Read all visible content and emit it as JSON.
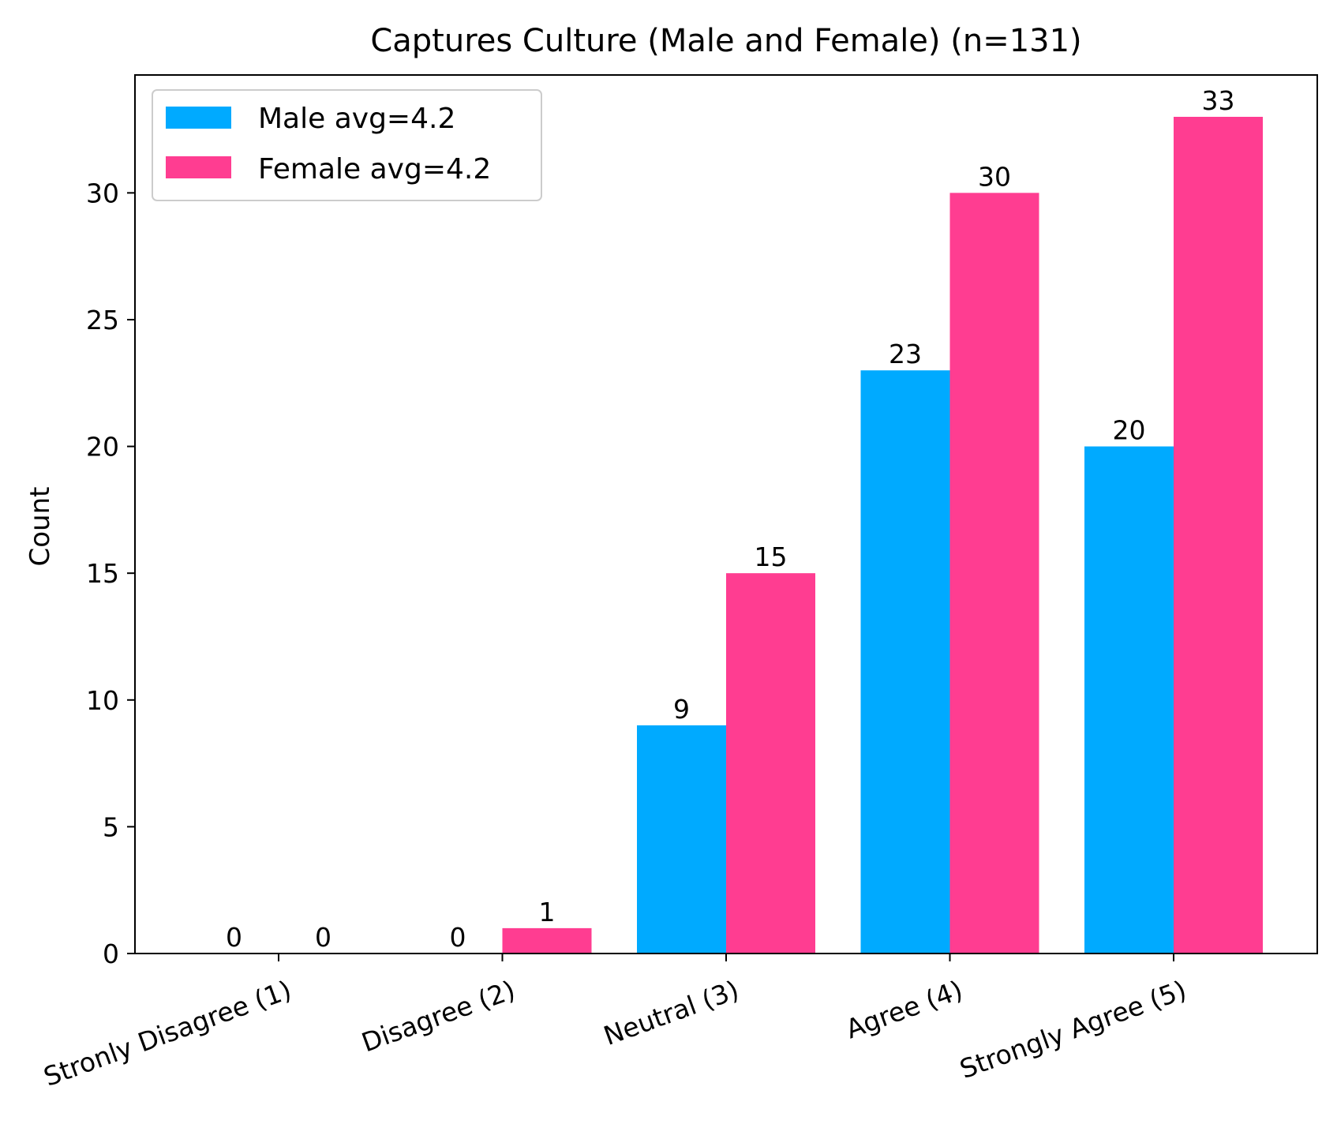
{
  "chart_data": {
    "type": "bar",
    "title": "Captures Culture (Male and Female) (n=131)",
    "xlabel": "",
    "ylabel": "Count",
    "categories": [
      "Stronly Disagree (1)",
      "Disagree (2)",
      "Neutral (3)",
      "Agree (4)",
      "Strongly Agree (5)"
    ],
    "series": [
      {
        "name": "Male avg=4.2",
        "values": [
          0,
          0,
          9,
          23,
          20
        ],
        "color": "#00aaff"
      },
      {
        "name": "Female avg=4.2",
        "values": [
          0,
          1,
          15,
          30,
          33
        ],
        "color": "#ff3d91"
      }
    ],
    "ylim": [
      0,
      34.65
    ],
    "yticks": [
      0,
      5,
      10,
      15,
      20,
      25,
      30
    ],
    "legend": "top-left",
    "grid": false
  }
}
